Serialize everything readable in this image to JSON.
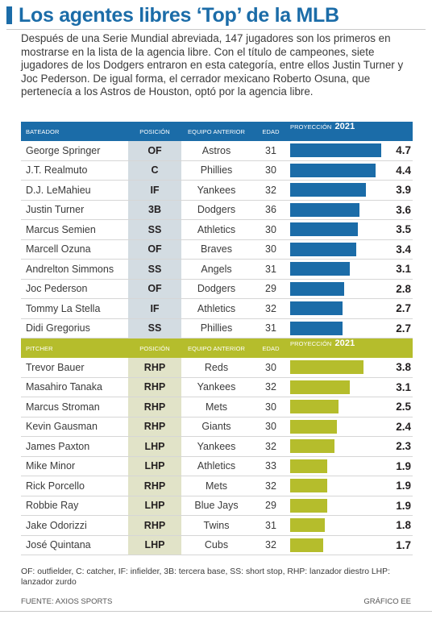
{
  "title": "Los agentes libres ‘Top’ de la MLB",
  "intro": "Después de una Serie Mundial abreviada, 147 jugadores son los primeros en mostrarse en la lista de la agencia libre. Con el título de campeones, siete jugadores de los Dodgers entraron en esta categoría, entre ellos Justin Turner y Joc Pederson. De igual forma, el cerrador mexicano Roberto Osuna, que pertenecía a los Astros de Houston, optó por la agencia libre.",
  "colors": {
    "batters": "#1b6ca8",
    "pitchers": "#b5bd2c"
  },
  "chart_data": {
    "type": "bar",
    "xlim": [
      0,
      5
    ],
    "tables": [
      {
        "header": {
          "name": "BATEADOR",
          "pos": "POSICIÓN",
          "team": "EQUIPO ANTERIOR",
          "age": "EDAD",
          "proj": "PROYECCIÓN",
          "year": "2021"
        },
        "rows": [
          {
            "name": "George Springer",
            "pos": "OF",
            "team": "Astros",
            "age": "31",
            "value": 4.7,
            "label": "4.7"
          },
          {
            "name": "J.T. Realmuto",
            "pos": "C",
            "team": "Phillies",
            "age": "30",
            "value": 4.4,
            "label": "4.4"
          },
          {
            "name": "D.J. LeMahieu",
            "pos": "IF",
            "team": "Yankees",
            "age": "32",
            "value": 3.9,
            "label": "3.9"
          },
          {
            "name": "Justin Turner",
            "pos": "3B",
            "team": "Dodgers",
            "age": "36",
            "value": 3.6,
            "label": "3.6"
          },
          {
            "name": "Marcus Semien",
            "pos": "SS",
            "team": "Athletics",
            "age": "30",
            "value": 3.5,
            "label": "3.5"
          },
          {
            "name": "Marcell Ozuna",
            "pos": "OF",
            "team": "Braves",
            "age": "30",
            "value": 3.4,
            "label": "3.4"
          },
          {
            "name": "Andrelton Simmons",
            "pos": "SS",
            "team": "Angels",
            "age": "31",
            "value": 3.1,
            "label": "3.1"
          },
          {
            "name": "Joc Pederson",
            "pos": "OF",
            "team": "Dodgers",
            "age": "29",
            "value": 2.8,
            "label": "2.8"
          },
          {
            "name": "Tommy La Stella",
            "pos": "IF",
            "team": "Athletics",
            "age": "32",
            "value": 2.7,
            "label": "2.7"
          },
          {
            "name": "Didi Gregorius",
            "pos": "SS",
            "team": "Phillies",
            "age": "31",
            "value": 2.7,
            "label": "2.7"
          }
        ]
      },
      {
        "header": {
          "name": "PITCHER",
          "pos": "POSICIÓN",
          "team": "EQUIPO ANTERIOR",
          "age": "EDAD",
          "proj": "PROYECCIÓN",
          "year": "2021"
        },
        "rows": [
          {
            "name": "Trevor Bauer",
            "pos": "RHP",
            "team": "Reds",
            "age": "30",
            "value": 3.8,
            "label": "3.8"
          },
          {
            "name": "Masahiro Tanaka",
            "pos": "RHP",
            "team": "Yankees",
            "age": "32",
            "value": 3.1,
            "label": "3.1"
          },
          {
            "name": "Marcus Stroman",
            "pos": "RHP",
            "team": "Mets",
            "age": "30",
            "value": 2.5,
            "label": "2.5"
          },
          {
            "name": "Kevin Gausman",
            "pos": "RHP",
            "team": "Giants",
            "age": "30",
            "value": 2.4,
            "label": "2.4"
          },
          {
            "name": "James Paxton",
            "pos": "LHP",
            "team": "Yankees",
            "age": "32",
            "value": 2.3,
            "label": "2.3"
          },
          {
            "name": "Mike Minor",
            "pos": "LHP",
            "team": "Athletics",
            "age": "33",
            "value": 1.9,
            "label": "1.9"
          },
          {
            "name": "Rick Porcello",
            "pos": "RHP",
            "team": "Mets",
            "age": "32",
            "value": 1.9,
            "label": "1.9"
          },
          {
            "name": "Robbie Ray",
            "pos": "LHP",
            "team": "Blue Jays",
            "age": "29",
            "value": 1.9,
            "label": "1.9"
          },
          {
            "name": "Jake Odorizzi",
            "pos": "RHP",
            "team": "Twins",
            "age": "31",
            "value": 1.8,
            "label": "1.8"
          },
          {
            "name": "José Quintana",
            "pos": "LHP",
            "team": "Cubs",
            "age": "32",
            "value": 1.7,
            "label": "1.7"
          }
        ]
      }
    ]
  },
  "footnote": "OF: outfielder, C: catcher, IF: infielder, 3B: tercera base, SS: short stop, RHP: lanzador diestro LHP: lanzador zurdo",
  "source": "FUENTE: AXIOS SPORTS",
  "credit": "GRÁFICO EE"
}
